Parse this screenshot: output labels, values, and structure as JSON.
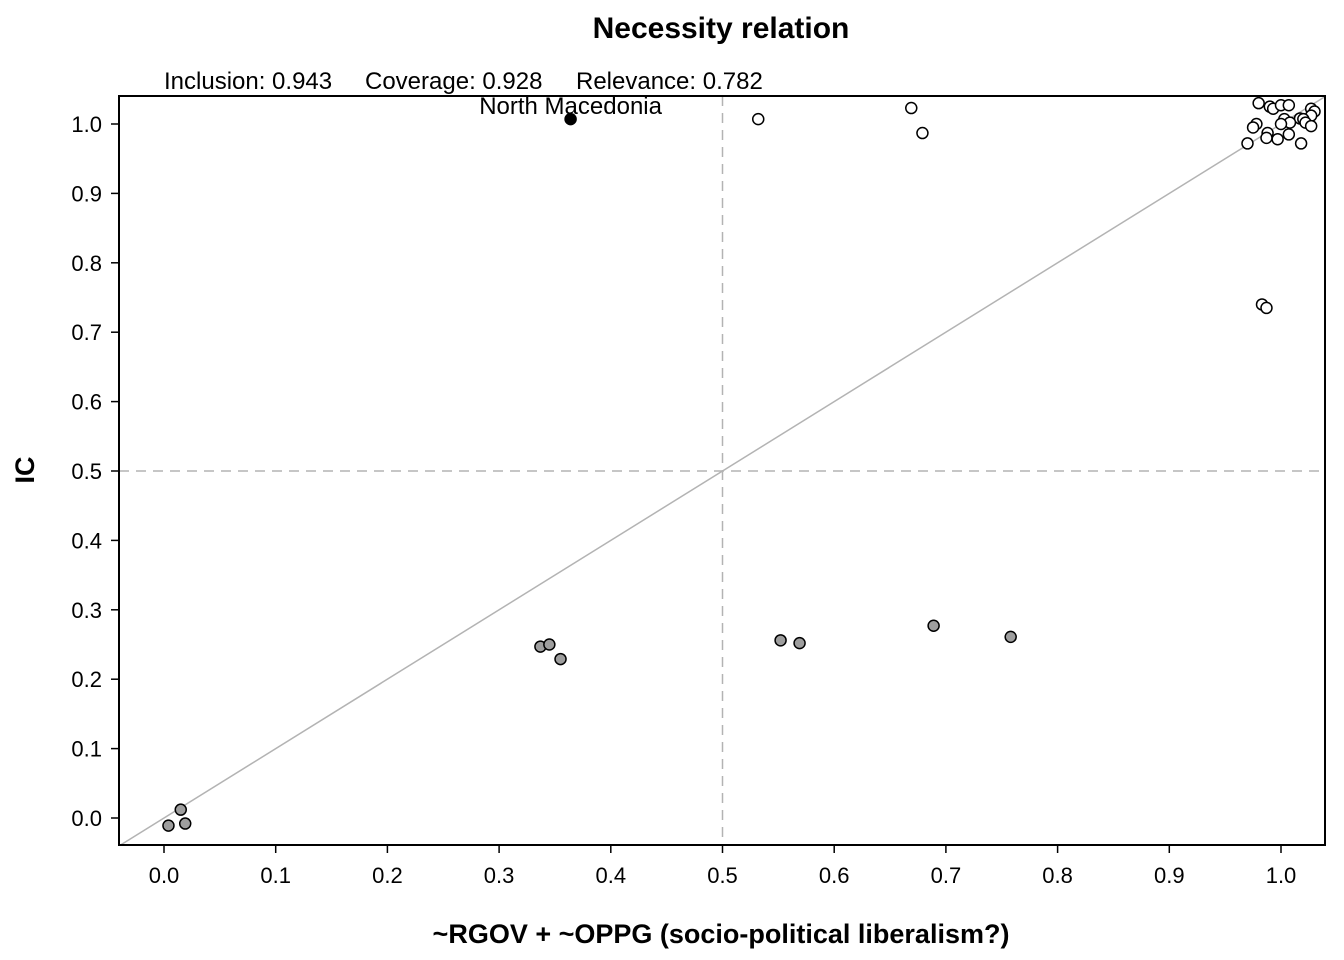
{
  "chart_data": {
    "type": "scatter",
    "title": "Necessity relation",
    "stats": {
      "inclusion_label": "Inclusion: 0.943",
      "coverage_label": "Coverage: 0.928",
      "relevance_label": "Relevance: 0.782"
    },
    "xlabel": "~RGOV + ~OPPG (socio-political liberalism?)",
    "ylabel": "IC",
    "xlim": [
      -0.04,
      1.04
    ],
    "ylim": [
      -0.04,
      1.04
    ],
    "xticks": [
      "0.0",
      "0.1",
      "0.2",
      "0.3",
      "0.4",
      "0.5",
      "0.6",
      "0.7",
      "0.8",
      "0.9",
      "1.0"
    ],
    "yticks": [
      "0.0",
      "0.1",
      "0.2",
      "0.3",
      "0.4",
      "0.5",
      "0.6",
      "0.7",
      "0.8",
      "0.9",
      "1.0"
    ],
    "reference_lines": {
      "diagonal": true,
      "vertical_dashed_at": 0.5,
      "horizontal_dashed_at": 0.5
    },
    "colors": {
      "diagonal": "#b3b3b3",
      "dashed": "#b3b3b3",
      "fill_empty": "#ffffff",
      "fill_gray": "#9e9e9e",
      "fill_black": "#000000",
      "outline": "#000000"
    },
    "series": [
      {
        "fill": "white",
        "points": [
          [
            0.532,
            1.007
          ],
          [
            0.669,
            1.023
          ],
          [
            0.679,
            0.987
          ],
          [
            0.98,
            1.03
          ],
          [
            0.99,
            1.025
          ],
          [
            0.993,
            1.022
          ],
          [
            1.0,
            1.027
          ],
          [
            1.007,
            1.027
          ],
          [
            1.027,
            1.022
          ],
          [
            1.03,
            1.018
          ],
          [
            1.027,
            1.012
          ],
          [
            1.017,
            1.008
          ],
          [
            1.02,
            1.007
          ],
          [
            1.003,
            1.007
          ],
          [
            1.008,
            1.002
          ],
          [
            1.0,
            1.0
          ],
          [
            1.022,
            1.002
          ],
          [
            1.027,
            0.997
          ],
          [
            0.978,
            1.0
          ],
          [
            0.975,
            0.995
          ],
          [
            0.988,
            0.987
          ],
          [
            0.987,
            0.98
          ],
          [
            0.997,
            0.978
          ],
          [
            1.007,
            0.985
          ],
          [
            0.97,
            0.972
          ],
          [
            1.018,
            0.972
          ],
          [
            0.983,
            0.74
          ],
          [
            0.987,
            0.735
          ]
        ]
      },
      {
        "fill": "gray",
        "points": [
          [
            0.337,
            0.247
          ],
          [
            0.345,
            0.25
          ],
          [
            0.355,
            0.229
          ],
          [
            0.552,
            0.256
          ],
          [
            0.569,
            0.252
          ],
          [
            0.689,
            0.277
          ],
          [
            0.758,
            0.261
          ],
          [
            0.004,
            -0.011
          ],
          [
            0.015,
            0.012
          ],
          [
            0.019,
            -0.008
          ]
        ]
      },
      {
        "fill": "black",
        "points": [
          [
            0.364,
            1.007
          ]
        ]
      }
    ],
    "annotations": [
      {
        "text": "North Macedonia",
        "x": 0.364,
        "y": 1.007
      }
    ]
  }
}
